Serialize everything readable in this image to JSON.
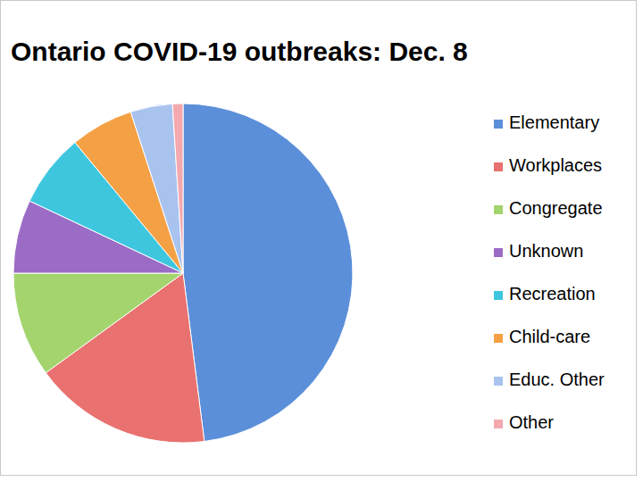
{
  "chart_data": {
    "type": "pie",
    "title": "Ontario COVID-19 outbreaks: Dec. 8",
    "categories": [
      "Elementary",
      "Workplaces",
      "Congregate",
      "Unknown",
      "Recreation",
      "Child-care",
      "Educ. Other",
      "Other"
    ],
    "values": [
      48,
      17,
      10,
      7,
      7,
      6,
      4,
      1
    ],
    "colors": [
      "#5b8fd9",
      "#e9716f",
      "#a3d46d",
      "#9a6cc6",
      "#3ec6df",
      "#f4a146",
      "#a9c3ef",
      "#f3a9ae"
    ],
    "legend": "right"
  }
}
